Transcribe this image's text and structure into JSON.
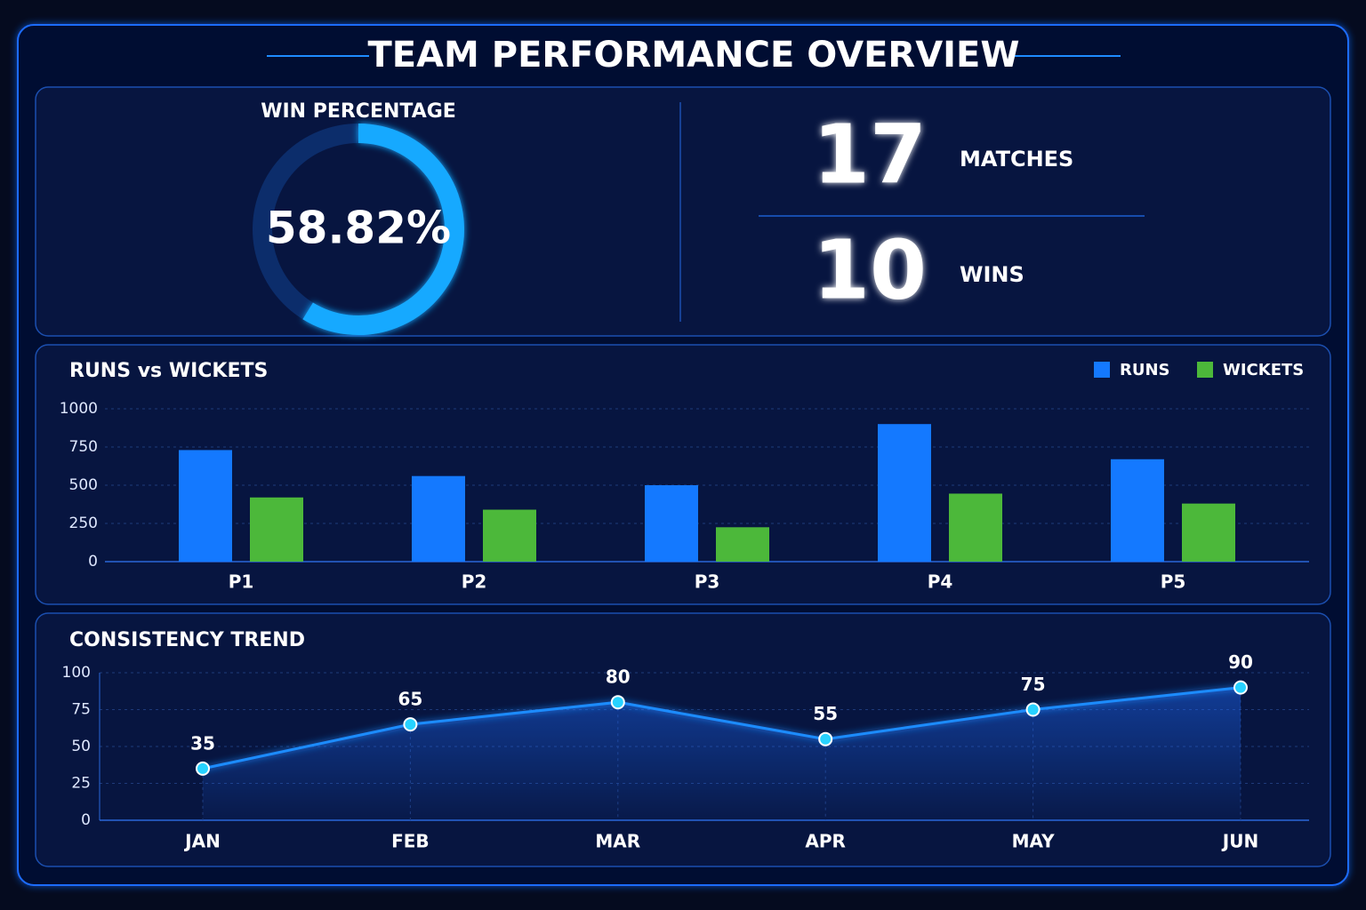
{
  "header": {
    "title": "TEAM PERFORMANCE OVERVIEW"
  },
  "stats": [
    {
      "value": 17,
      "label": "MATCHES"
    },
    {
      "value": 10,
      "label": "WINS"
    }
  ],
  "chart_data": [
    {
      "type": "donut",
      "title": "WIN PERCENTAGE",
      "values": [
        58.82
      ],
      "value_labels": [
        "58.82%"
      ],
      "color": "#19a9ff",
      "track_color": "#0c2d6b"
    },
    {
      "type": "bar",
      "title": "RUNS vs WICKETS",
      "categories": [
        "P1",
        "P2",
        "P3",
        "P4",
        "P5"
      ],
      "series": [
        {
          "name": "RUNS",
          "color": "#1479ff",
          "values": [
            730,
            560,
            500,
            900,
            670
          ]
        },
        {
          "name": "WICKETS",
          "color": "#4cb83a",
          "values": [
            420,
            340,
            225,
            445,
            380
          ]
        }
      ],
      "ylim": [
        0,
        1000
      ],
      "yticks": [
        0,
        250,
        500,
        750,
        1000
      ],
      "grid": true,
      "legend": "top-right"
    },
    {
      "type": "line",
      "title": "CONSISTENCY TREND",
      "categories": [
        "JAN",
        "FEB",
        "MAR",
        "APR",
        "MAY",
        "JUN"
      ],
      "values": [
        35,
        65,
        80,
        55,
        75,
        90
      ],
      "color": "#1e8cff",
      "ylim": [
        0,
        100
      ],
      "yticks": [
        0,
        25,
        50,
        75,
        100
      ],
      "grid": true
    }
  ]
}
